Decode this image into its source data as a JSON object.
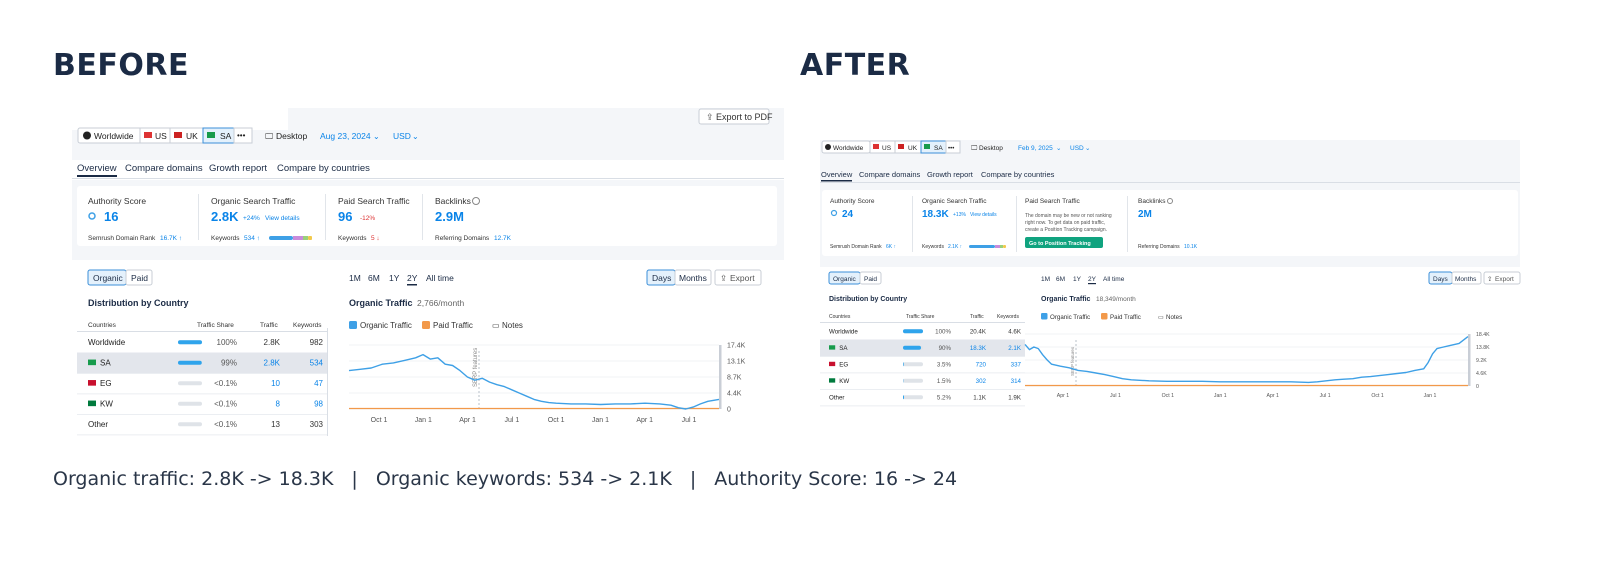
{
  "labels": {
    "before": "BEFORE",
    "after": "AFTER"
  },
  "summary": {
    "traffic": "Organic traffic: 2.8K -> 18.3K",
    "keywords": "Organic keywords: 534 -> 2.1K",
    "authority": "Authority Score: 16 -> 24",
    "separator": "|"
  },
  "colors": {
    "accent": "#0a84e8",
    "line": "#3ea0e6",
    "paid": "#f2994a",
    "green": "#10a37f",
    "dark": "#1b2b45"
  },
  "before": {
    "export_pdf": "Export to PDF",
    "locations": [
      "Worldwide",
      "US",
      "UK",
      "SA"
    ],
    "more": "•••",
    "device": "Desktop",
    "date": "Aug 23, 2024",
    "currency": "USD",
    "tabs": [
      "Overview",
      "Compare domains",
      "Growth report",
      "Compare by countries"
    ],
    "metrics": {
      "authority": {
        "label": "Authority Score",
        "value": "16",
        "sub_label": "Semrush Domain Rank",
        "sub_value": "16.7K ↑"
      },
      "organic": {
        "label": "Organic Search Traffic",
        "value": "2.8K",
        "change": "+24%",
        "link": "View details",
        "sub_label": "Keywords",
        "sub_value": "534 ↑"
      },
      "paid": {
        "label": "Paid Search Traffic",
        "value": "96",
        "change": "-12%",
        "sub_label": "Keywords",
        "sub_value": "5 ↓"
      },
      "backlinks": {
        "label": "Backlinks",
        "value": "2.9M",
        "sub_label": "Referring Domains",
        "sub_value": "12.7K"
      }
    },
    "toggle": [
      "Organic",
      "Paid"
    ],
    "dist_title": "Distribution by Country",
    "table_headers": [
      "Countries",
      "Traffic Share",
      "Traffic",
      "Keywords"
    ],
    "rows": [
      {
        "country": "Worldwide",
        "share": "100%",
        "share_fraction": 1.0,
        "traffic": "2.8K",
        "keywords": "982"
      },
      {
        "country": "SA",
        "share": "99%",
        "share_fraction": 0.99,
        "traffic": "2.8K",
        "keywords": "534"
      },
      {
        "country": "EG",
        "share": "<0.1%",
        "share_fraction": 0.0,
        "traffic": "10",
        "keywords": "47"
      },
      {
        "country": "KW",
        "share": "<0.1%",
        "share_fraction": 0.0,
        "traffic": "8",
        "keywords": "98"
      },
      {
        "country": "Other",
        "share": "<0.1%",
        "share_fraction": 0.0,
        "traffic": "13",
        "keywords": "303"
      }
    ],
    "ranges": [
      "1M",
      "6M",
      "1Y",
      "2Y",
      "All time"
    ],
    "view_toggle": [
      "Days",
      "Months"
    ],
    "export": "Export",
    "chart_title": "Organic Traffic",
    "chart_sub": "2,766/month",
    "legend": [
      "Organic Traffic",
      "Paid Traffic"
    ],
    "notes": "Notes",
    "serp_label": "SERP features",
    "y_ticks": [
      "17.4K",
      "13.1K",
      "8.7K",
      "4.4K",
      "0"
    ],
    "x_ticks": [
      "Oct 1",
      "Jan 1",
      "Apr 1",
      "Jul 1",
      "Oct 1",
      "Jan 1",
      "Apr 1",
      "Jul 1"
    ]
  },
  "after": {
    "locations": [
      "Worldwide",
      "US",
      "UK",
      "SA"
    ],
    "more": "•••",
    "device": "Desktop",
    "date": "Feb 9, 2025",
    "currency": "USD",
    "tabs": [
      "Overview",
      "Compare domains",
      "Growth report",
      "Compare by countries"
    ],
    "metrics": {
      "authority": {
        "label": "Authority Score",
        "value": "24",
        "sub_label": "Semrush Domain Rank",
        "sub_value": "6K ↑"
      },
      "organic": {
        "label": "Organic Search Traffic",
        "value": "18.3K",
        "change": "+13%",
        "link": "View details",
        "sub_label": "Keywords",
        "sub_value": "2.1K ↑"
      },
      "paid": {
        "label": "Paid Search Traffic",
        "note_lines": [
          "The domain may be new or not ranking",
          "right now. To get data on paid traffic,",
          "create a Position Tracking campaign."
        ],
        "cta": "Go to Position Tracking"
      },
      "backlinks": {
        "label": "Backlinks",
        "value": "2M",
        "sub_label": "Referring Domains",
        "sub_value": "10.1K"
      }
    },
    "toggle": [
      "Organic",
      "Paid"
    ],
    "dist_title": "Distribution by Country",
    "table_headers": [
      "Countries",
      "Traffic Share",
      "Traffic",
      "Keywords"
    ],
    "rows": [
      {
        "country": "Worldwide",
        "share": "100%",
        "share_fraction": 1.0,
        "traffic": "20.4K",
        "keywords": "4.6K"
      },
      {
        "country": "SA",
        "share": "90%",
        "share_fraction": 0.9,
        "traffic": "18.3K",
        "keywords": "2.1K"
      },
      {
        "country": "EG",
        "share": "3.5%",
        "share_fraction": 0.035,
        "traffic": "720",
        "keywords": "337"
      },
      {
        "country": "KW",
        "share": "1.5%",
        "share_fraction": 0.015,
        "traffic": "302",
        "keywords": "314"
      },
      {
        "country": "Other",
        "share": "5.2%",
        "share_fraction": 0.052,
        "traffic": "1.1K",
        "keywords": "1.9K"
      }
    ],
    "ranges": [
      "1M",
      "6M",
      "1Y",
      "2Y",
      "All time"
    ],
    "view_toggle": [
      "Days",
      "Months"
    ],
    "export": "Export",
    "chart_title": "Organic Traffic",
    "chart_sub": "18,349/month",
    "legend": [
      "Organic Traffic",
      "Paid Traffic"
    ],
    "notes": "Notes",
    "serp_label": "SERP features",
    "y_ticks": [
      "18.4K",
      "13.8K",
      "9.2K",
      "4.6K",
      "0"
    ],
    "x_ticks": [
      "Apr 1",
      "Jul 1",
      "Oct 1",
      "Jan 1",
      "Apr 1",
      "Jul 1",
      "Oct 1",
      "Jan 1"
    ]
  }
}
